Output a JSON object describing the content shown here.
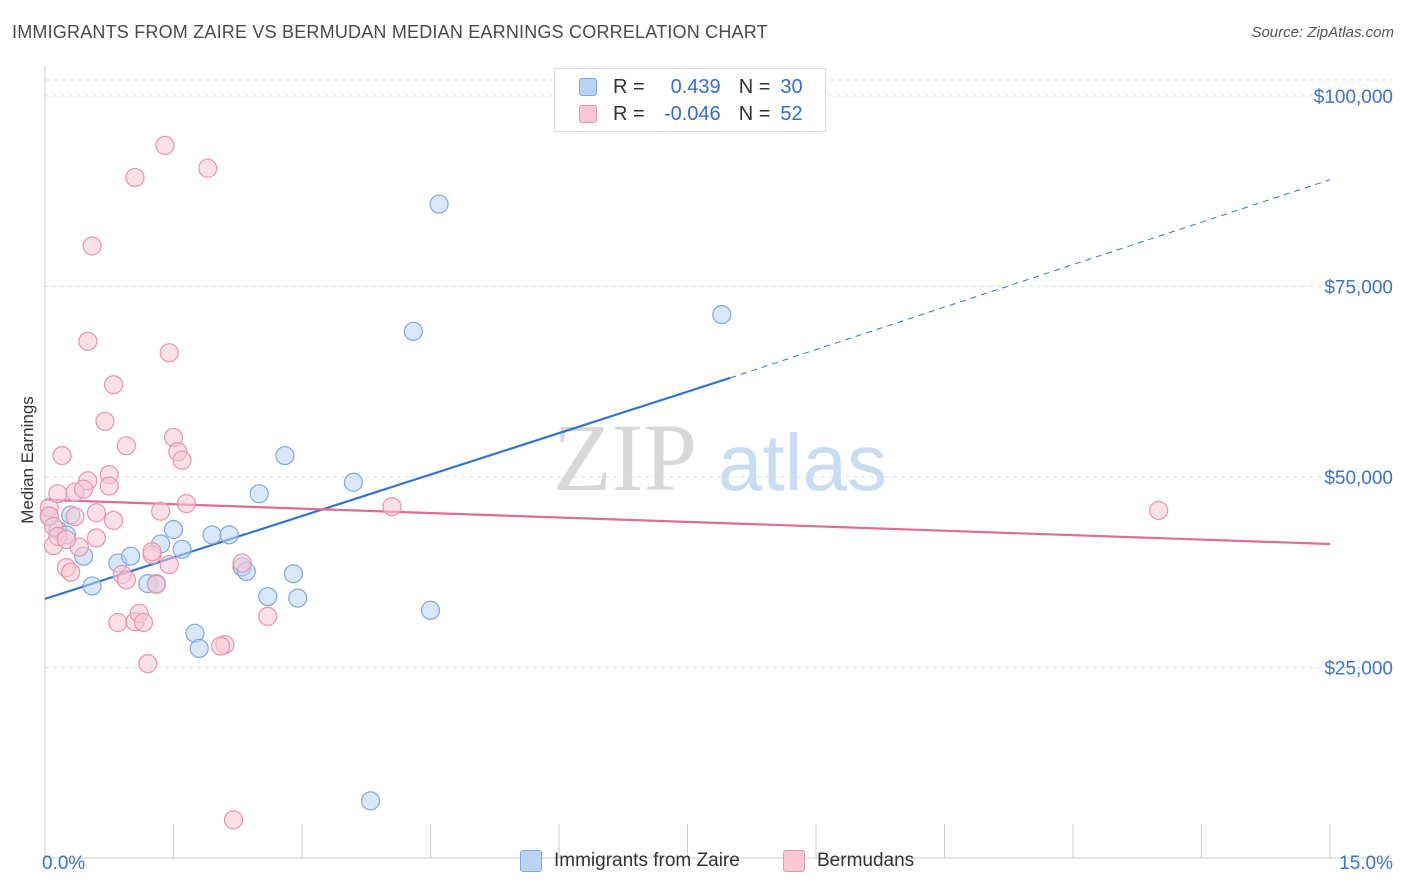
{
  "title": "IMMIGRANTS FROM ZAIRE VS BERMUDAN MEDIAN EARNINGS CORRELATION CHART",
  "source": "Source: ZipAtlas.com",
  "watermark": {
    "zip": "ZIP",
    "atlas": "atlas"
  },
  "legend": {
    "r_label": "R =",
    "n_label": "N =",
    "rows": [
      {
        "r": "0.439",
        "n": "30"
      },
      {
        "r": "-0.046",
        "n": "52"
      }
    ]
  },
  "colors": {
    "blue_fill": "#b8d3f4",
    "blue_stroke": "#7fa9dd",
    "blue_line": "#2f74d0",
    "pink_fill": "#f9c7d6",
    "pink_stroke": "#ea93ae",
    "pink_line": "#e06c95",
    "axis_text": "#3a75c8",
    "grid": "#dddddd"
  },
  "chart_data": {
    "type": "scatter",
    "title": "IMMIGRANTS FROM ZAIRE VS BERMUDAN MEDIAN EARNINGS CORRELATION CHART",
    "xlabel": "",
    "ylabel": "Median Earnings",
    "xlim": [
      0,
      15
    ],
    "ylim": [
      0,
      103000
    ],
    "x_tick_labels": [
      "0.0%",
      "15.0%"
    ],
    "y_ticks": [
      25000,
      50000,
      75000,
      100000
    ],
    "y_tick_labels": [
      "$25,000",
      "$50,000",
      "$75,000",
      "$100,000"
    ],
    "grid": true,
    "series": [
      {
        "name": "Immigrants from Zaire",
        "points": [
          [
            0.05,
            44800
          ],
          [
            0.15,
            43000
          ],
          [
            0.25,
            42400
          ],
          [
            0.45,
            39600
          ],
          [
            0.55,
            35700
          ],
          [
            0.85,
            38700
          ],
          [
            1.0,
            39600
          ],
          [
            1.2,
            36000
          ],
          [
            1.3,
            36000
          ],
          [
            1.35,
            41200
          ],
          [
            1.5,
            43100
          ],
          [
            1.6,
            40500
          ],
          [
            1.75,
            29500
          ],
          [
            1.8,
            27500
          ],
          [
            1.95,
            42400
          ],
          [
            2.15,
            42400
          ],
          [
            2.3,
            38200
          ],
          [
            2.35,
            37600
          ],
          [
            2.5,
            47800
          ],
          [
            2.6,
            34300
          ],
          [
            2.8,
            52800
          ],
          [
            2.9,
            37300
          ],
          [
            2.95,
            34100
          ],
          [
            3.6,
            49300
          ],
          [
            3.8,
            7500
          ],
          [
            4.3,
            69100
          ],
          [
            4.5,
            32500
          ],
          [
            4.6,
            85800
          ],
          [
            7.9,
            71300
          ],
          [
            0.3,
            45000
          ]
        ],
        "trend": {
          "x": [
            0,
            8.0
          ],
          "y": [
            34000,
            63000
          ],
          "dashed_to": [
            15,
            89000
          ]
        }
      },
      {
        "name": "Bermudans",
        "points": [
          [
            0.05,
            46000
          ],
          [
            0.05,
            44900
          ],
          [
            0.1,
            43500
          ],
          [
            0.1,
            41000
          ],
          [
            0.15,
            42200
          ],
          [
            0.2,
            52800
          ],
          [
            0.25,
            38100
          ],
          [
            0.3,
            37500
          ],
          [
            0.35,
            44800
          ],
          [
            0.4,
            40800
          ],
          [
            0.5,
            67800
          ],
          [
            0.5,
            49500
          ],
          [
            0.55,
            80300
          ],
          [
            0.6,
            45300
          ],
          [
            0.6,
            42000
          ],
          [
            0.7,
            57300
          ],
          [
            0.75,
            50300
          ],
          [
            0.75,
            48800
          ],
          [
            0.8,
            44300
          ],
          [
            0.8,
            62100
          ],
          [
            0.85,
            30900
          ],
          [
            0.9,
            37200
          ],
          [
            0.95,
            54100
          ],
          [
            0.95,
            36500
          ],
          [
            1.05,
            31000
          ],
          [
            1.05,
            89300
          ],
          [
            1.1,
            32100
          ],
          [
            1.15,
            30900
          ],
          [
            1.2,
            25500
          ],
          [
            1.25,
            39800
          ],
          [
            1.3,
            35900
          ],
          [
            1.35,
            45500
          ],
          [
            1.4,
            93500
          ],
          [
            1.45,
            66300
          ],
          [
            1.45,
            38500
          ],
          [
            1.5,
            55200
          ],
          [
            1.55,
            53300
          ],
          [
            1.6,
            52200
          ],
          [
            1.65,
            46500
          ],
          [
            1.9,
            90500
          ],
          [
            2.1,
            28000
          ],
          [
            2.2,
            5000
          ],
          [
            2.3,
            38700
          ],
          [
            2.6,
            31700
          ],
          [
            4.05,
            46100
          ],
          [
            13.0,
            45600
          ],
          [
            0.15,
            47800
          ],
          [
            0.25,
            41800
          ],
          [
            0.35,
            48000
          ],
          [
            0.45,
            48400
          ],
          [
            1.25,
            40200
          ],
          [
            2.05,
            27800
          ]
        ],
        "trend": {
          "x": [
            0,
            15
          ],
          "y": [
            47000,
            41200
          ]
        }
      }
    ]
  },
  "bottom_legend": [
    "Immigrants from Zaire",
    "Bermudans"
  ]
}
